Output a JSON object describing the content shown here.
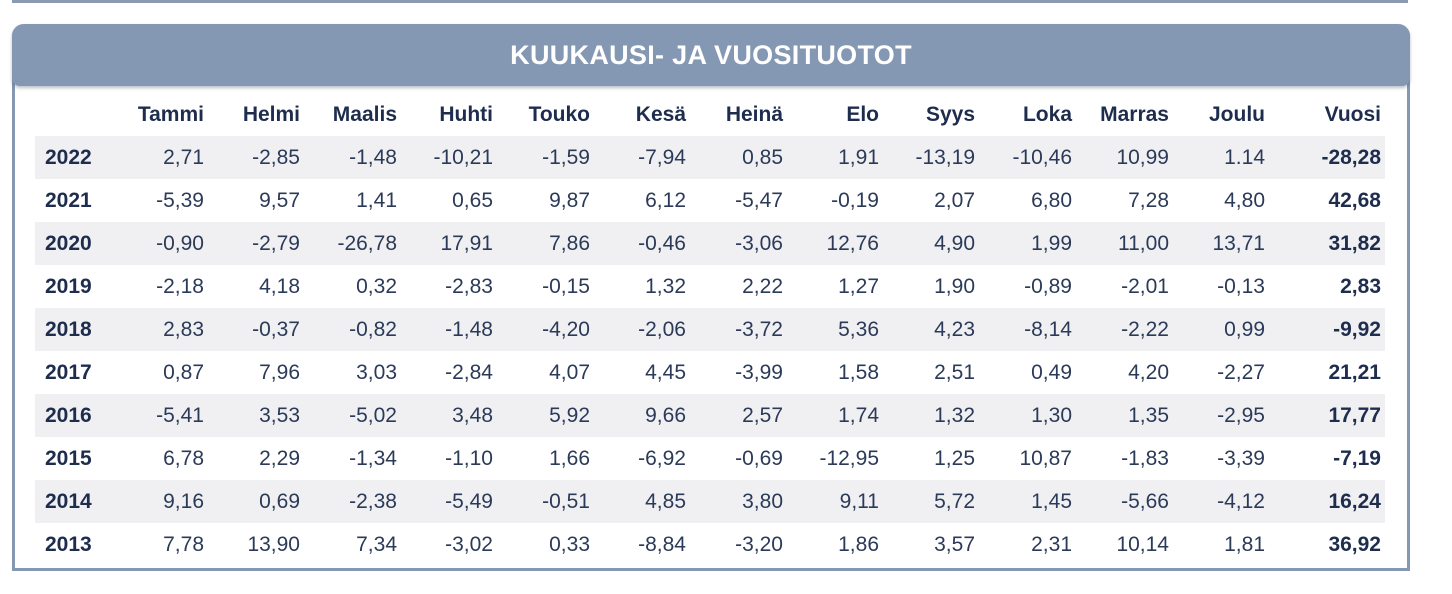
{
  "title": "KUUKAUSI- JA VUOSITUOTOT",
  "chart_data": {
    "type": "table",
    "title": "KUUKAUSI- JA VUOSITUOTOT",
    "columns": [
      "",
      "Tammi",
      "Helmi",
      "Maalis",
      "Huhti",
      "Touko",
      "Kesä",
      "Heinä",
      "Elo",
      "Syys",
      "Loka",
      "Marras",
      "Joulu",
      "Vuosi"
    ],
    "rows": [
      [
        "2022",
        "2,71",
        "-2,85",
        "-1,48",
        "-10,21",
        "-1,59",
        "-7,94",
        "0,85",
        "1,91",
        "-13,19",
        "-10,46",
        "10,99",
        "1.14",
        "-28,28"
      ],
      [
        "2021",
        "-5,39",
        "9,57",
        "1,41",
        "0,65",
        "9,87",
        "6,12",
        "-5,47",
        "-0,19",
        "2,07",
        "6,80",
        "7,28",
        "4,80",
        "42,68"
      ],
      [
        "2020",
        "-0,90",
        "-2,79",
        "-26,78",
        "17,91",
        "7,86",
        "-0,46",
        "-3,06",
        "12,76",
        "4,90",
        "1,99",
        "11,00",
        "13,71",
        "31,82"
      ],
      [
        "2019",
        "-2,18",
        "4,18",
        "0,32",
        "-2,83",
        "-0,15",
        "1,32",
        "2,22",
        "1,27",
        "1,90",
        "-0,89",
        "-2,01",
        "-0,13",
        "2,83"
      ],
      [
        "2018",
        "2,83",
        "-0,37",
        "-0,82",
        "-1,48",
        "-4,20",
        "-2,06",
        "-3,72",
        "5,36",
        "4,23",
        "-8,14",
        "-2,22",
        "0,99",
        "-9,92"
      ],
      [
        "2017",
        "0,87",
        "7,96",
        "3,03",
        "-2,84",
        "4,07",
        "4,45",
        "-3,99",
        "1,58",
        "2,51",
        "0,49",
        "4,20",
        "-2,27",
        "21,21"
      ],
      [
        "2016",
        "-5,41",
        "3,53",
        "-5,02",
        "3,48",
        "5,92",
        "9,66",
        "2,57",
        "1,74",
        "1,32",
        "1,30",
        "1,35",
        "-2,95",
        "17,77"
      ],
      [
        "2015",
        "6,78",
        "2,29",
        "-1,34",
        "-1,10",
        "1,66",
        "-6,92",
        "-0,69",
        "-12,95",
        "1,25",
        "10,87",
        "-1,83",
        "-3,39",
        "-7,19"
      ],
      [
        "2014",
        "9,16",
        "0,69",
        "-2,38",
        "-5,49",
        "-0,51",
        "4,85",
        "3,80",
        "9,11",
        "5,72",
        "1,45",
        "-5,66",
        "-4,12",
        "16,24"
      ],
      [
        "2013",
        "7,78",
        "13,90",
        "7,34",
        "-3,02",
        "0,33",
        "-8,84",
        "-3,20",
        "1,86",
        "3,57",
        "2,31",
        "10,14",
        "1,81",
        "36,92"
      ]
    ]
  },
  "colors": {
    "header_band": "#8598b3",
    "text": "#1e2d4d",
    "row_stripe": "#f0f0f2"
  }
}
